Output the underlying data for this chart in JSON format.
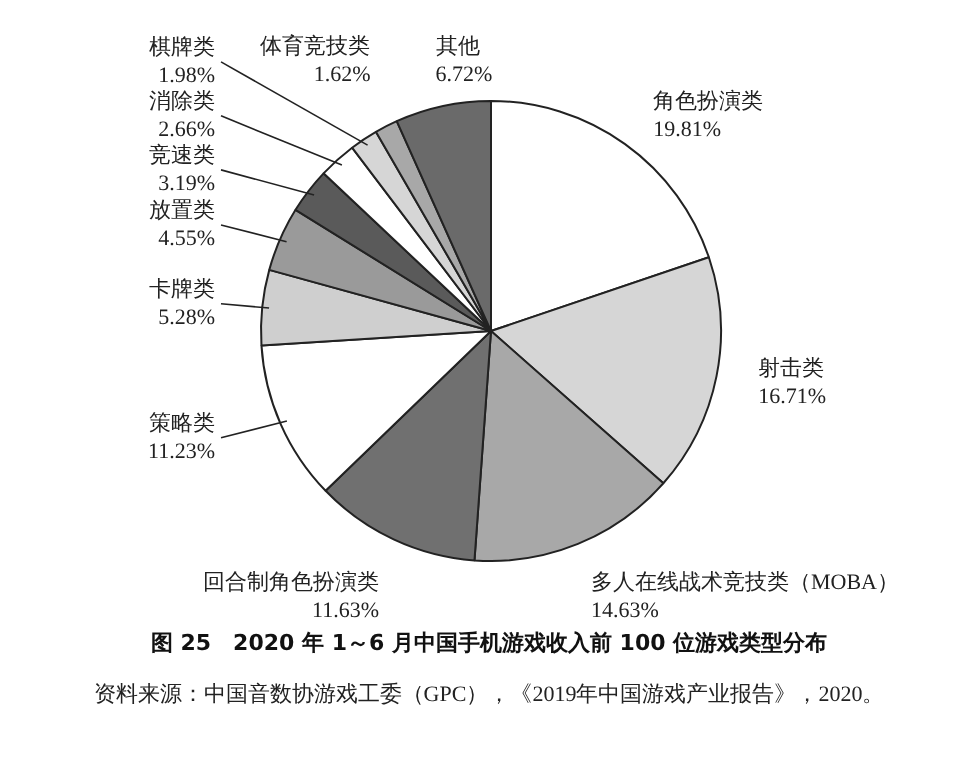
{
  "chart_data": {
    "type": "pie",
    "title": "图 25　2020 年 1～6 月中国手机游戏收入前 100 位游戏类型分布",
    "categories": [
      "角色扮演类",
      "射击类",
      "多人在线战术竞技类（MOBA）",
      "回合制角色扮演类",
      "策略类",
      "卡牌类",
      "放置类",
      "竞速类",
      "消除类",
      "棋牌类",
      "体育竞技类",
      "其他"
    ],
    "values": [
      19.81,
      16.71,
      14.63,
      11.63,
      11.23,
      5.28,
      4.55,
      3.19,
      2.66,
      1.98,
      1.62,
      6.72
    ],
    "value_labels": [
      "19.81%",
      "16.71%",
      "14.63%",
      "11.63%",
      "11.23%",
      "5.28%",
      "4.55%",
      "3.19%",
      "2.66%",
      "1.98%",
      "1.62%",
      "6.72%"
    ],
    "colors": [
      "#ffffff",
      "#d6d6d6",
      "#a8a8a8",
      "#707070",
      "#ffffff",
      "#cfcfcf",
      "#9a9a9a",
      "#5a5a5a",
      "#ffffff",
      "#d6d6d6",
      "#a8a8a8",
      "#6a6a6a"
    ],
    "annotations": [
      "资料来源：中国音数协游戏工委（GPC），《2019年中国游戏产业报告》，2020。"
    ]
  }
}
